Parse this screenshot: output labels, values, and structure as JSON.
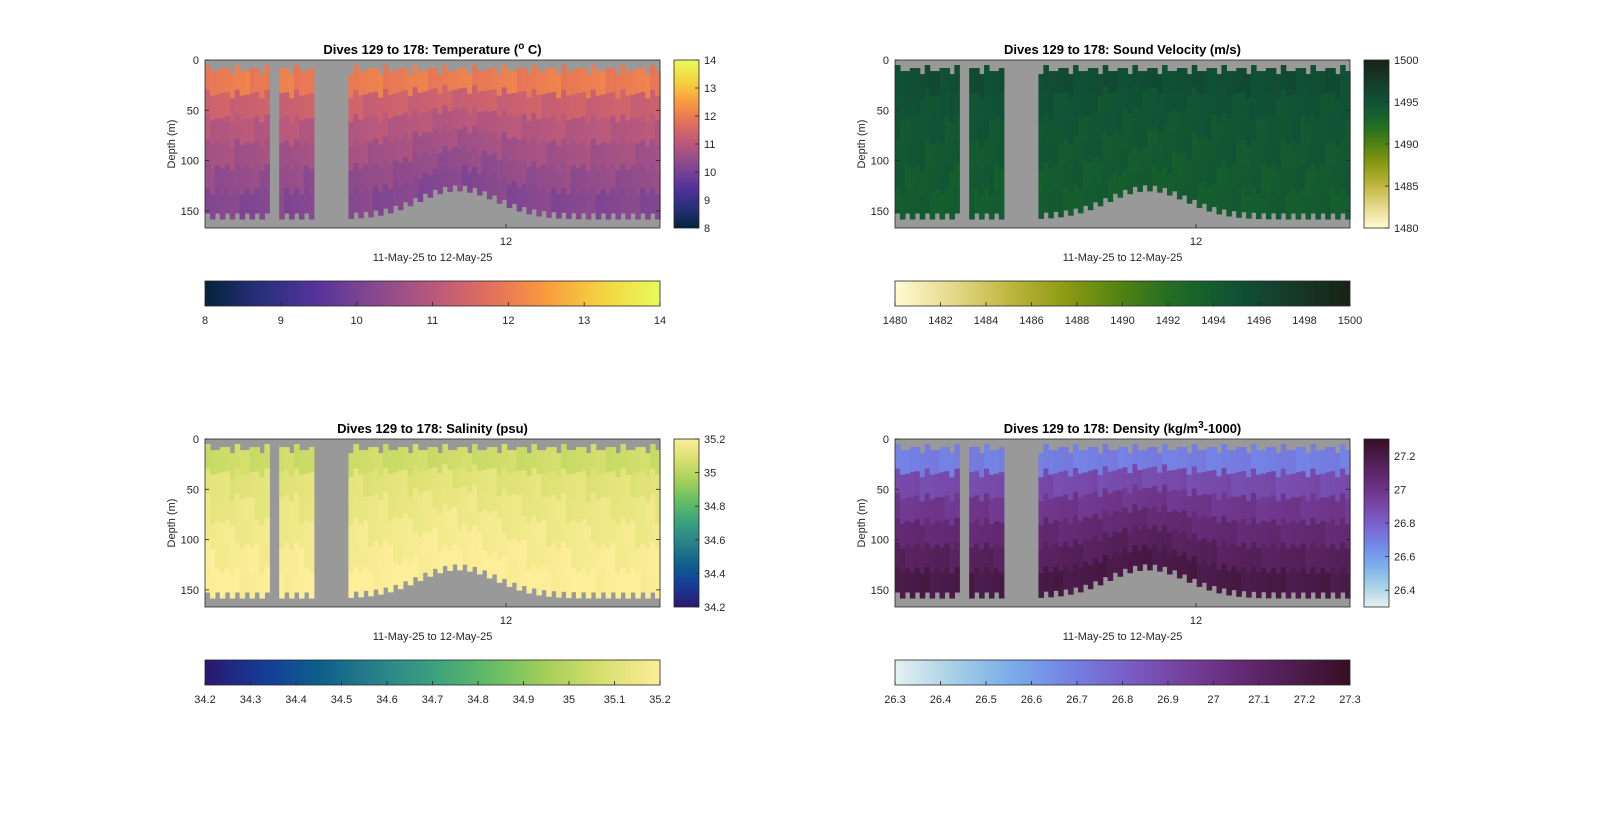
{
  "chart_data": [
    {
      "type": "heatmap",
      "title": "Dives 129 to 178: Temperature (",
      "title_sup": "o",
      "title_end": " C)",
      "xlabel": "11-May-25 to 12-May-25",
      "ylabel": "Depth (m)",
      "x_ticks": [
        "12"
      ],
      "y_ticks": [
        0,
        50,
        100,
        150
      ],
      "ylim": [
        0,
        167
      ],
      "colormap": "thermal",
      "clim": [
        8,
        14
      ],
      "side_colorbar_ticks": [
        14,
        13,
        12,
        11,
        10,
        9,
        8
      ],
      "bottom_colorbar_ticks": [
        8,
        9,
        10,
        11,
        12,
        13,
        14
      ],
      "surface_value": 12.0,
      "deep_value": 10.2,
      "no_data_color": "#999999"
    },
    {
      "type": "heatmap",
      "title": "Dives 129 to 178: Sound Velocity (m/s)",
      "xlabel": "11-May-25 to 12-May-25",
      "ylabel": "Depth (m)",
      "x_ticks": [
        "12"
      ],
      "y_ticks": [
        0,
        50,
        100,
        150
      ],
      "ylim": [
        0,
        167
      ],
      "colormap": "speed",
      "clim": [
        1480,
        1500
      ],
      "side_colorbar_ticks": [
        1500,
        1495,
        1490,
        1485,
        1480
      ],
      "bottom_colorbar_ticks": [
        1480,
        1482,
        1484,
        1486,
        1488,
        1490,
        1492,
        1494,
        1496,
        1498,
        1500
      ],
      "surface_value": 1495.5,
      "deep_value": 1494.0,
      "no_data_color": "#999999"
    },
    {
      "type": "heatmap",
      "title": "Dives 129 to 178: Salinity (psu)",
      "xlabel": "11-May-25 to 12-May-25",
      "ylabel": "Depth (m)",
      "x_ticks": [
        "12"
      ],
      "y_ticks": [
        0,
        50,
        100,
        150
      ],
      "ylim": [
        0,
        167
      ],
      "colormap": "haline",
      "clim": [
        34.2,
        35.2
      ],
      "side_colorbar_ticks": [
        35.2,
        35,
        34.8,
        34.6,
        34.4,
        34.2
      ],
      "bottom_colorbar_ticks": [
        34.2,
        34.3,
        34.4,
        34.5,
        34.6,
        34.7,
        34.8,
        34.9,
        35,
        35.1,
        35.2
      ],
      "surface_value": 35.05,
      "deep_value": 35.2,
      "no_data_color": "#999999"
    },
    {
      "type": "heatmap",
      "title": "Dives 129 to 178: Density (kg/m",
      "title_sup": "3",
      "title_end": "-1000)",
      "xlabel": "11-May-25 to 12-May-25",
      "ylabel": "Depth (m)",
      "x_ticks": [
        "12"
      ],
      "y_ticks": [
        0,
        50,
        100,
        150
      ],
      "ylim": [
        0,
        167
      ],
      "colormap": "dense",
      "clim": [
        26.3,
        27.3
      ],
      "side_colorbar_ticks": [
        27.2,
        27,
        26.8,
        26.6,
        26.4
      ],
      "bottom_colorbar_ticks": [
        26.3,
        26.4,
        26.5,
        26.6,
        26.7,
        26.8,
        26.9,
        27,
        27.1,
        27.2,
        27.3
      ],
      "surface_value": 26.7,
      "deep_value": 27.2,
      "no_data_color": "#999999"
    }
  ]
}
